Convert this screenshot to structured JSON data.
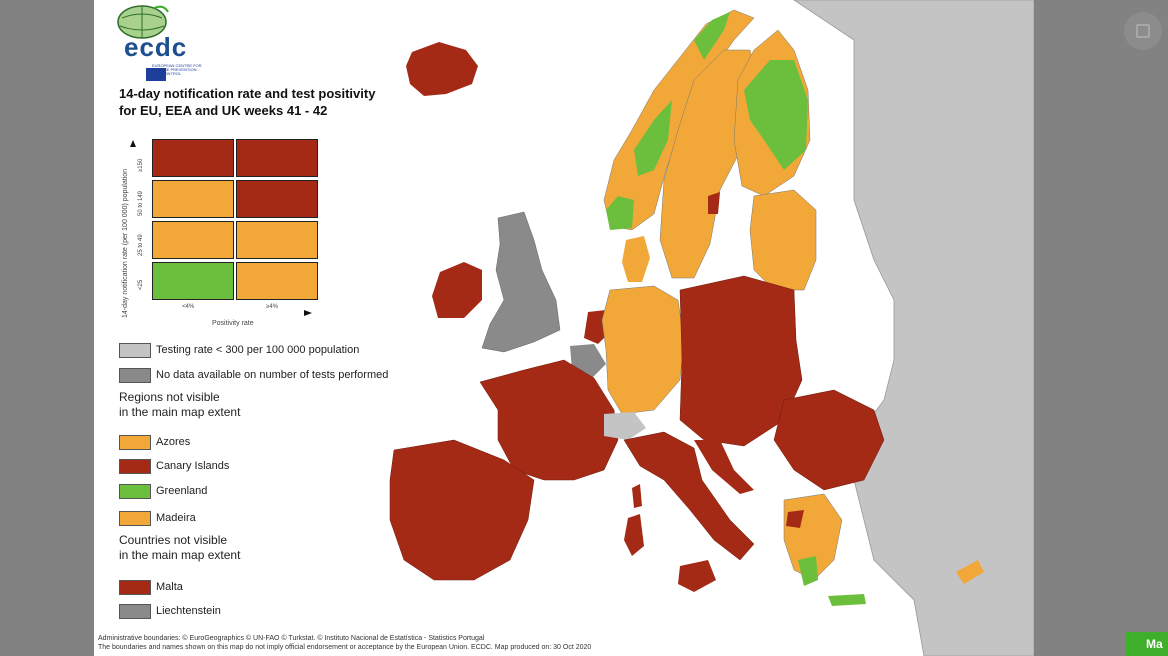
{
  "map": {
    "title_line1": "14-day notification rate and test positivity",
    "title_line2": "for EU, EEA and UK weeks 41 - 42",
    "logo_text": "ecdc",
    "logo_subtext": "EUROPEAN CENTRE FOR DISEASE PREVENTION AND CONTROL",
    "colors": {
      "dark_red": "#a52a16",
      "orange": "#f2a838",
      "green": "#6cbf3c",
      "grey": "#8a8a8a",
      "light_grey": "#c4c4c4",
      "water": "#ffffff"
    },
    "matrix": {
      "y_axis_label": "14-day notification rate (per 100 000) population",
      "x_axis_label": "Positivity rate",
      "y_ticks": [
        "≥150",
        "50 to 149",
        "25 to 49",
        "<25"
      ],
      "x_ticks": [
        "<4%",
        "≥4%"
      ],
      "cells": [
        [
          "dark_red",
          "dark_red"
        ],
        [
          "orange",
          "dark_red"
        ],
        [
          "orange",
          "orange"
        ],
        [
          "green",
          "orange"
        ]
      ]
    },
    "legend": {
      "testing_rate": "Testing rate < 300 per 100 000 population",
      "no_data": "No data available on number of tests performed",
      "regions_heading_1": "Regions not visible",
      "regions_heading_2": "in the main map extent",
      "regions": [
        "Azores",
        "Canary Islands",
        "Greenland",
        "Madeira"
      ],
      "countries_heading_1": "Countries not visible",
      "countries_heading_2": "in the main map extent",
      "countries": [
        "Malta",
        "Liechtenstein"
      ]
    },
    "footer_line1": "Administrative boundaries: © EuroGeographics © UN-FAO © Turkstat. © Instituto Nacional de Estatística - Statistics Portugal",
    "footer_line2": "The boundaries and names shown on this map do not imply official endorsement or acceptance by the European Union. ECDC. Map produced on: 30 Oct 2020"
  },
  "viewer": {
    "more_label": "Ma",
    "expand_icon": "expand-icon"
  }
}
